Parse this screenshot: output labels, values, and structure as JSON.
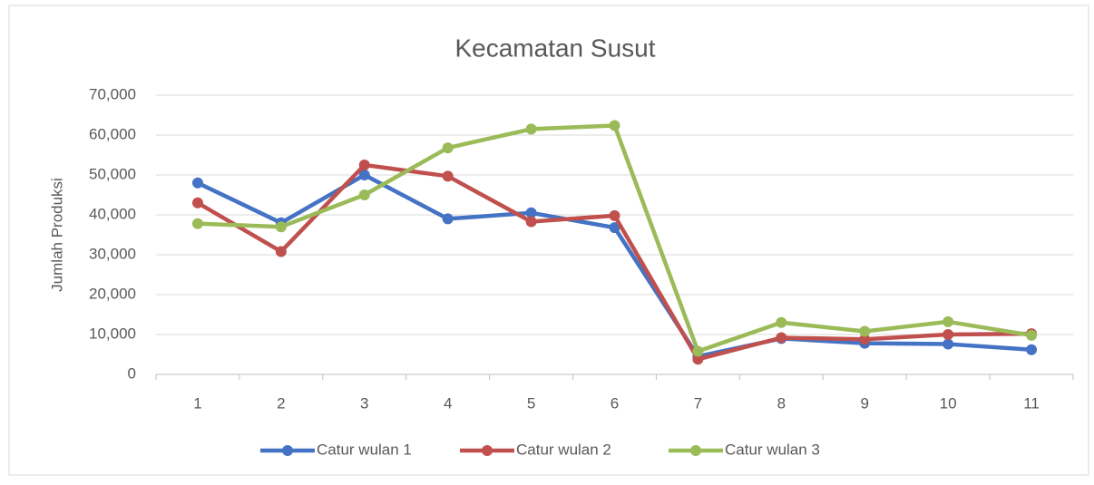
{
  "chart_data": {
    "type": "line",
    "title": "Kecamatan Susut",
    "y_label": "Jumlah Produksi",
    "categories": [
      "1",
      "2",
      "3",
      "4",
      "5",
      "6",
      "7",
      "8",
      "9",
      "10",
      "11"
    ],
    "series": [
      {
        "name": "Catur wulan 1",
        "color": "#4472c4",
        "values": [
          48000,
          38000,
          50000,
          39000,
          40500,
          36800,
          4500,
          9000,
          7800,
          7600,
          6200
        ]
      },
      {
        "name": "Catur wulan 2",
        "color": "#c0504d",
        "values": [
          43000,
          30800,
          52500,
          49700,
          38300,
          39800,
          3800,
          9200,
          8800,
          10000,
          10200
        ]
      },
      {
        "name": "Catur wulan 3",
        "color": "#9bbb59",
        "values": [
          37800,
          37000,
          45000,
          56800,
          61500,
          62400,
          5800,
          13000,
          10800,
          13200,
          9800
        ]
      }
    ],
    "ylim": [
      0,
      70000
    ],
    "yticks": [
      0,
      {
        "value": 10000,
        "label": "10,000"
      },
      {
        "value": 20000,
        "label": "20,000"
      },
      {
        "value": 30000,
        "label": "30,000"
      },
      {
        "value": 40000,
        "label": "40,000"
      },
      {
        "value": 50000,
        "label": "50,000"
      },
      {
        "value": 60000,
        "label": "60,000"
      },
      {
        "value": 70000,
        "label": "70,000"
      }
    ],
    "grid": true,
    "legend": "bottom"
  }
}
